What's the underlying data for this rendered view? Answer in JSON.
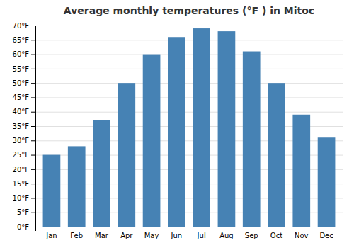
{
  "chart_data": {
    "type": "bar",
    "title": "Average monthly temperatures (°F ) in Mitoc",
    "categories": [
      "Jan",
      "Feb",
      "Mar",
      "Apr",
      "May",
      "Jun",
      "Jul",
      "Aug",
      "Sep",
      "Oct",
      "Nov",
      "Dec"
    ],
    "values": [
      25,
      28,
      37,
      50,
      60,
      66,
      69,
      68,
      61,
      50,
      39,
      31
    ],
    "ylim": [
      0,
      70
    ],
    "yticks": [
      {
        "value": 0,
        "label": "0°F"
      },
      {
        "value": 5,
        "label": "5°F"
      },
      {
        "value": 10,
        "label": "10°F"
      },
      {
        "value": 15,
        "label": "15°F"
      },
      {
        "value": 20,
        "label": "20°F"
      },
      {
        "value": 25,
        "label": "25°F"
      },
      {
        "value": 30,
        "label": "30°F"
      },
      {
        "value": 35,
        "label": "35°F"
      },
      {
        "value": 40,
        "label": "40°F"
      },
      {
        "value": 45,
        "label": "45°F"
      },
      {
        "value": 50,
        "label": "50°F"
      },
      {
        "value": 55,
        "label": "55°F"
      },
      {
        "value": 60,
        "label": "60°F"
      },
      {
        "value": 65,
        "label": "65°F"
      },
      {
        "value": 70,
        "label": "70°F"
      }
    ],
    "grid": true
  }
}
